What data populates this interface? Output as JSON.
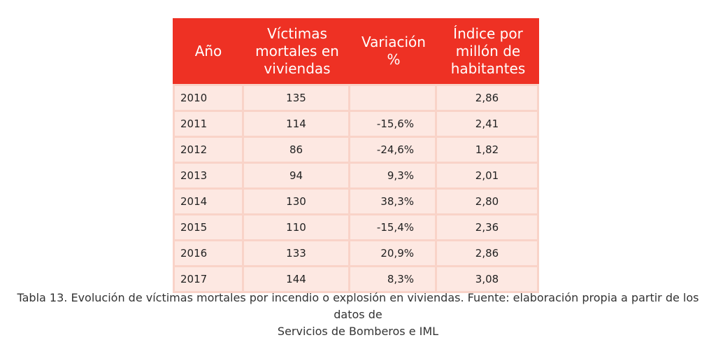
{
  "table": {
    "headers": {
      "year": "Año",
      "victims": "Víctimas mortales en viviendas",
      "variation": "Variación %",
      "index": "Índice por millón de habitantes"
    },
    "rows": [
      {
        "year": "2010",
        "victims": "135",
        "variation": "",
        "index": "2,86"
      },
      {
        "year": "2011",
        "victims": "114",
        "variation": "-15,6%",
        "index": "2,41"
      },
      {
        "year": "2012",
        "victims": "86",
        "variation": "-24,6%",
        "index": "1,82"
      },
      {
        "year": "2013",
        "victims": "94",
        "variation": "9,3%",
        "index": "2,01"
      },
      {
        "year": "2014",
        "victims": "130",
        "variation": "38,3%",
        "index": "2,80"
      },
      {
        "year": "2015",
        "victims": "110",
        "variation": "-15,4%",
        "index": "2,36"
      },
      {
        "year": "2016",
        "victims": "133",
        "variation": "20,9%",
        "index": "2,86"
      },
      {
        "year": "2017",
        "victims": "144",
        "variation": "8,3%",
        "index": "3,08"
      }
    ]
  },
  "caption": {
    "line1": "Tabla 13. Evolución de víctimas mortales por incendio o explosión en viviendas. Fuente: elaboración propia a partir de los datos de",
    "line2": "Servicios de Bomberos e IML"
  },
  "colors": {
    "header_bg": "#ee3124",
    "cell_bg": "#fde8e2",
    "cell_border": "#f9d3c8"
  }
}
